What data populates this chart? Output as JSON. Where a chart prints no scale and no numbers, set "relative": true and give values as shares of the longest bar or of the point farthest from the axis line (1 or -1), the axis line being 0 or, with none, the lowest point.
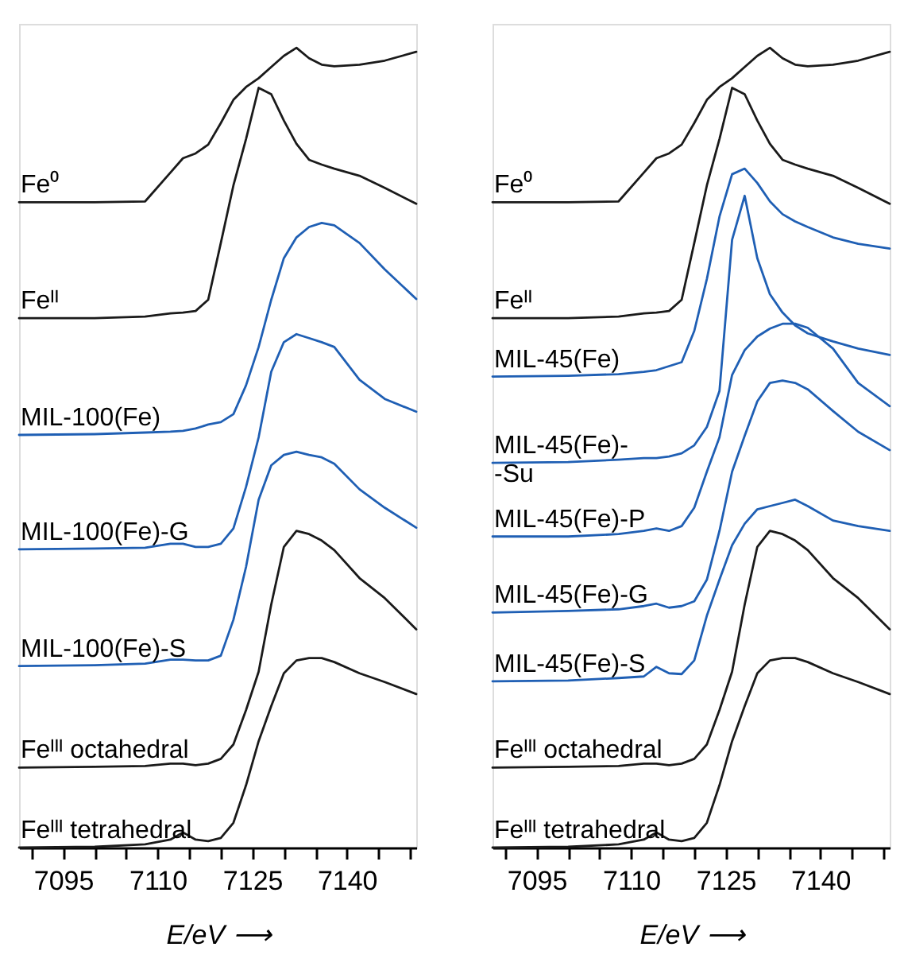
{
  "chart_data": [
    {
      "type": "line",
      "relative": true,
      "xlabel": "E/eV ⟶",
      "line_style": "solid",
      "legend": false,
      "grid": false,
      "x": [
        7088,
        7100,
        7108,
        7112,
        7114,
        7116,
        7118,
        7120,
        7122,
        7124,
        7126,
        7128,
        7130,
        7132,
        7134,
        7136,
        7138,
        7142,
        7146,
        7151
      ],
      "xlim": [
        7088,
        7151
      ],
      "xticks": [
        {
          "value": 7090,
          "label": null
        },
        7095,
        {
          "value": 7100,
          "label": null
        },
        {
          "value": 7105,
          "label": null
        },
        7110,
        {
          "value": 7115,
          "label": null
        },
        {
          "value": 7120,
          "label": null
        },
        7125,
        {
          "value": 7130,
          "label": null
        },
        {
          "value": 7135,
          "label": null
        },
        7140,
        {
          "value": 7145,
          "label": null
        },
        {
          "value": 7150,
          "label": null
        }
      ],
      "series": [
        {
          "name": "Fe⁰",
          "color": "#1a1a1a",
          "values": [
            0.807,
            0.807,
            0.808,
            0.844,
            0.862,
            0.868,
            0.879,
            0.906,
            0.935,
            0.951,
            0.962,
            0.976,
            0.99,
            1.0,
            0.987,
            0.979,
            0.977,
            0.979,
            0.984,
            0.995
          ]
        },
        {
          "name": "Feᴵᴵ",
          "color": "#1a1a1a",
          "values": [
            0.662,
            0.662,
            0.664,
            0.668,
            0.669,
            0.671,
            0.685,
            0.756,
            0.828,
            0.886,
            0.95,
            0.942,
            0.909,
            0.88,
            0.86,
            0.854,
            0.849,
            0.84,
            0.825,
            0.805
          ]
        },
        {
          "name": "MIL-100(Fe)",
          "color": "#1f5fb4",
          "values": [
            0.516,
            0.517,
            0.519,
            0.52,
            0.521,
            0.524,
            0.529,
            0.532,
            0.542,
            0.578,
            0.626,
            0.685,
            0.737,
            0.763,
            0.776,
            0.781,
            0.778,
            0.756,
            0.723,
            0.686
          ]
        },
        {
          "name": "MIL-100(Fe)-G",
          "color": "#1f5fb4",
          "values": [
            0.373,
            0.374,
            0.375,
            0.38,
            0.38,
            0.376,
            0.376,
            0.38,
            0.399,
            0.451,
            0.513,
            0.595,
            0.632,
            0.642,
            0.637,
            0.632,
            0.626,
            0.585,
            0.561,
            0.545
          ]
        },
        {
          "name": "MIL-100(Fe)-S",
          "color": "#1f5fb4",
          "values": [
            0.227,
            0.228,
            0.23,
            0.235,
            0.235,
            0.234,
            0.234,
            0.24,
            0.285,
            0.351,
            0.435,
            0.478,
            0.491,
            0.495,
            0.491,
            0.488,
            0.48,
            0.448,
            0.425,
            0.4
          ]
        },
        {
          "name": "Feᴵᴵᴵ octahedral",
          "color": "#1a1a1a",
          "values": [
            0.1,
            0.101,
            0.102,
            0.105,
            0.105,
            0.103,
            0.105,
            0.111,
            0.129,
            0.172,
            0.22,
            0.304,
            0.376,
            0.396,
            0.392,
            0.384,
            0.372,
            0.337,
            0.312,
            0.273
          ]
        },
        {
          "name": "Feᴵᴵᴵ tetrahedral",
          "color": "#1a1a1a",
          "values": [
            0.0,
            0.001,
            0.004,
            0.01,
            0.019,
            0.01,
            0.008,
            0.012,
            0.031,
            0.078,
            0.133,
            0.177,
            0.218,
            0.234,
            0.237,
            0.237,
            0.232,
            0.218,
            0.207,
            0.192
          ]
        }
      ]
    },
    {
      "type": "line",
      "relative": true,
      "xlabel": "E/eV ⟶",
      "line_style": "solid",
      "legend": false,
      "grid": false,
      "x": [
        7088,
        7100,
        7108,
        7112,
        7114,
        7116,
        7118,
        7120,
        7122,
        7124,
        7126,
        7128,
        7130,
        7132,
        7134,
        7136,
        7138,
        7142,
        7146,
        7151
      ],
      "xlim": [
        7088,
        7151
      ],
      "xticks": [
        {
          "value": 7090,
          "label": null
        },
        7095,
        {
          "value": 7100,
          "label": null
        },
        {
          "value": 7105,
          "label": null
        },
        7110,
        {
          "value": 7115,
          "label": null
        },
        {
          "value": 7120,
          "label": null
        },
        7125,
        {
          "value": 7130,
          "label": null
        },
        {
          "value": 7135,
          "label": null
        },
        7140,
        {
          "value": 7145,
          "label": null
        },
        {
          "value": 7150,
          "label": null
        }
      ],
      "series": [
        {
          "name": "Fe⁰",
          "color": "#1a1a1a",
          "values": [
            0.807,
            0.807,
            0.808,
            0.844,
            0.862,
            0.868,
            0.879,
            0.906,
            0.935,
            0.951,
            0.962,
            0.976,
            0.99,
            1.0,
            0.987,
            0.979,
            0.977,
            0.979,
            0.984,
            0.995
          ]
        },
        {
          "name": "Feᴵᴵ",
          "color": "#1a1a1a",
          "values": [
            0.662,
            0.662,
            0.664,
            0.668,
            0.669,
            0.671,
            0.685,
            0.756,
            0.828,
            0.886,
            0.95,
            0.942,
            0.909,
            0.88,
            0.86,
            0.854,
            0.849,
            0.84,
            0.825,
            0.805
          ]
        },
        {
          "name": "MIL-45(Fe)",
          "color": "#1f5fb4",
          "values": [
            0.589,
            0.59,
            0.592,
            0.595,
            0.597,
            0.602,
            0.607,
            0.646,
            0.711,
            0.789,
            0.842,
            0.849,
            0.831,
            0.808,
            0.792,
            0.783,
            0.776,
            0.763,
            0.755,
            0.749
          ]
        },
        {
          "name": "MIL-45(Fe)-\n-Su",
          "color": "#1f5fb4",
          "values": [
            0.481,
            0.482,
            0.485,
            0.487,
            0.487,
            0.489,
            0.493,
            0.503,
            0.526,
            0.571,
            0.76,
            0.815,
            0.737,
            0.692,
            0.669,
            0.653,
            0.643,
            0.633,
            0.624,
            0.616
          ]
        },
        {
          "name": "MIL-45(Fe)-P",
          "color": "#1f5fb4",
          "values": [
            0.389,
            0.389,
            0.392,
            0.396,
            0.399,
            0.396,
            0.402,
            0.425,
            0.47,
            0.513,
            0.591,
            0.622,
            0.639,
            0.649,
            0.655,
            0.655,
            0.65,
            0.624,
            0.581,
            0.552
          ]
        },
        {
          "name": "MIL-45(Fe)-G",
          "color": "#1f5fb4",
          "values": [
            0.294,
            0.296,
            0.298,
            0.302,
            0.305,
            0.3,
            0.302,
            0.308,
            0.335,
            0.396,
            0.47,
            0.515,
            0.558,
            0.581,
            0.584,
            0.581,
            0.573,
            0.546,
            0.52,
            0.497
          ]
        },
        {
          "name": "MIL-45(Fe)-S",
          "color": "#1f5fb4",
          "values": [
            0.208,
            0.209,
            0.212,
            0.214,
            0.226,
            0.218,
            0.217,
            0.234,
            0.29,
            0.335,
            0.378,
            0.405,
            0.423,
            0.427,
            0.431,
            0.435,
            0.427,
            0.409,
            0.402,
            0.396
          ]
        },
        {
          "name": "Feᴵᴵᴵ octahedral",
          "color": "#1a1a1a",
          "values": [
            0.1,
            0.101,
            0.102,
            0.105,
            0.105,
            0.103,
            0.105,
            0.111,
            0.129,
            0.172,
            0.22,
            0.304,
            0.376,
            0.396,
            0.392,
            0.384,
            0.372,
            0.337,
            0.312,
            0.273
          ]
        },
        {
          "name": "Feᴵᴵᴵ tetrahedral",
          "color": "#1a1a1a",
          "values": [
            0.0,
            0.001,
            0.004,
            0.01,
            0.019,
            0.01,
            0.008,
            0.012,
            0.031,
            0.078,
            0.133,
            0.177,
            0.218,
            0.234,
            0.237,
            0.237,
            0.232,
            0.218,
            0.207,
            0.192
          ]
        }
      ]
    }
  ]
}
